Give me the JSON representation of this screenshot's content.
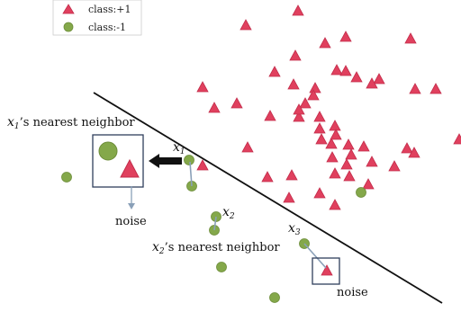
{
  "legend": {
    "items": [
      {
        "label": "class:+1",
        "shape": "triangle",
        "color": "#e0405e"
      },
      {
        "label": "class:-1",
        "shape": "circle",
        "color": "#84a84a"
      }
    ]
  },
  "annotations": {
    "x1_label": {
      "base": "x",
      "sub": "1"
    },
    "x2_label": {
      "base": "x",
      "sub": "2"
    },
    "x3_label": {
      "base": "x",
      "sub": "3"
    },
    "x1_nn": {
      "var": "x",
      "sub": "1",
      "text": "’s nearest neighbor"
    },
    "x2_nn": {
      "var": "x",
      "sub": "2",
      "text": "’s nearest neighbor"
    },
    "noise_left": "noise",
    "noise_right": "noise"
  },
  "colors": {
    "triangle": "#e0405e",
    "triangle_stroke": "#c32d4b",
    "circle": "#84a84a",
    "circle_stroke": "#6d8d3a",
    "line": "#111111",
    "connector": "#8aa0b8",
    "box": "#2f3f5c"
  }
}
